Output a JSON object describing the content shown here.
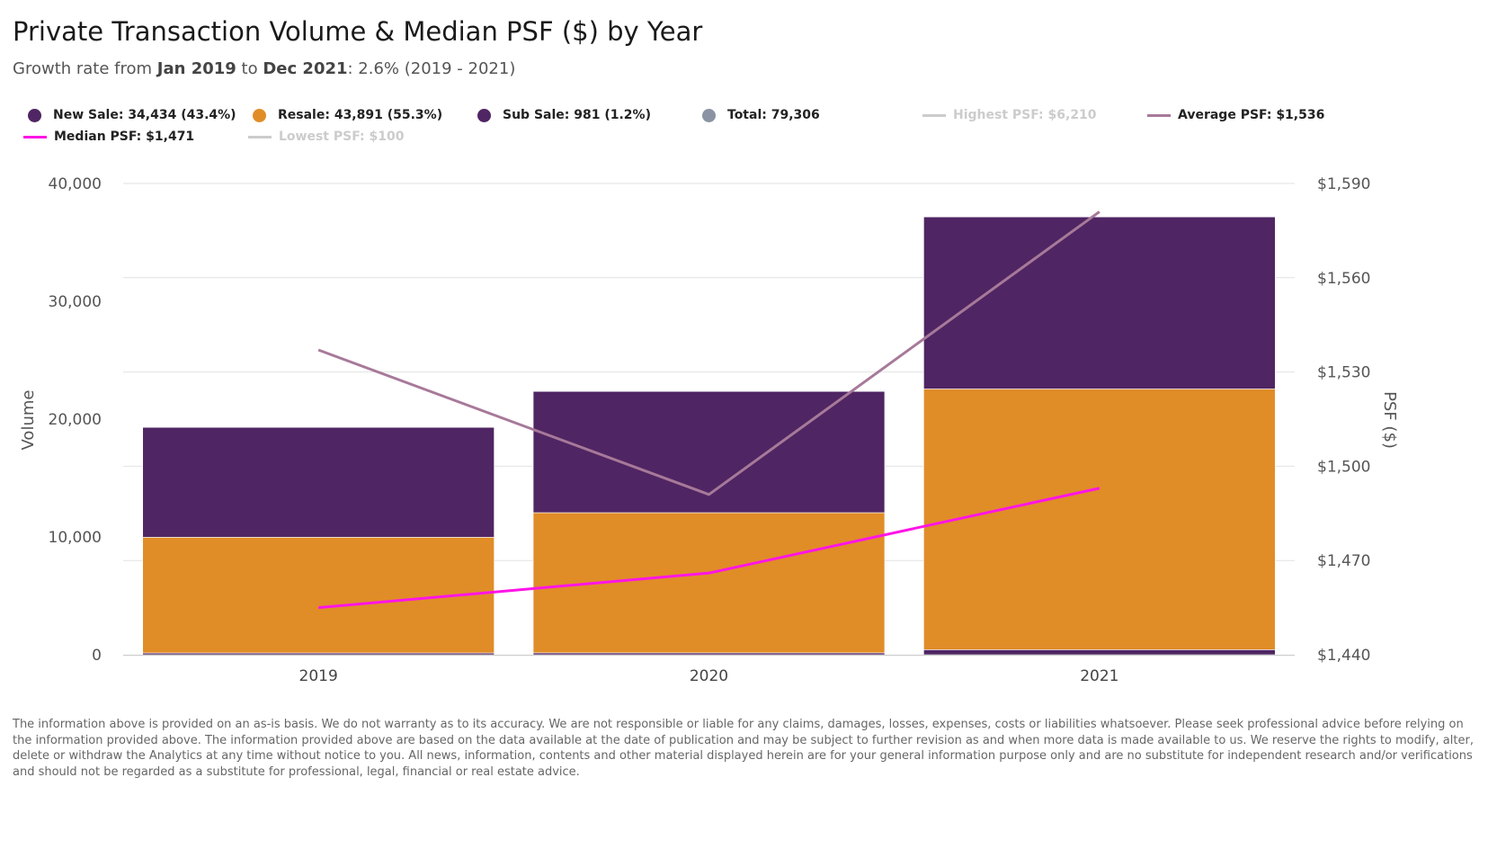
{
  "title": "Private Transaction Volume & Median PSF ($) by Year",
  "subtitle": {
    "prefix": "Growth rate from ",
    "from": "Jan 2019",
    "mid": " to ",
    "to": "Dec 2021",
    "suffix": ": 2.6% (2019 - 2021)"
  },
  "legend": [
    {
      "label": "New Sale: 34,434 (43.4%)",
      "symbol": "dot",
      "color": "#4f2563",
      "active": true
    },
    {
      "label": "Resale: 43,891 (55.3%)",
      "symbol": "dot",
      "color": "#e08d27",
      "active": true
    },
    {
      "label": "Sub Sale: 981 (1.2%)",
      "symbol": "dot",
      "color": "#4f2563",
      "active": true
    },
    {
      "label": "Total: 79,306",
      "symbol": "dot",
      "color": "#8a93a3",
      "active": true
    },
    {
      "label": "Highest PSF: $6,210",
      "symbol": "line",
      "color": "#cccccc",
      "active": false
    },
    {
      "label": "Average PSF: $1,536",
      "symbol": "line",
      "color": "#a77999",
      "active": true
    },
    {
      "label": "Median PSF: $1,471",
      "symbol": "line",
      "color": "#ff14e7",
      "active": true
    },
    {
      "label": "Lowest PSF: $100",
      "symbol": "line",
      "color": "#cccccc",
      "active": false
    }
  ],
  "chart_data": {
    "type": "bar",
    "stacked": true,
    "categories": [
      "2019",
      "2020",
      "2021"
    ],
    "ylabel": "Volume",
    "ylim": [
      0,
      40000
    ],
    "yticks": [
      "0",
      "10,000",
      "20,000",
      "30,000",
      "40,000"
    ],
    "ytick_values": [
      0,
      10000,
      20000,
      30000,
      40000
    ],
    "y2label": "PSF ($)",
    "y2lim": [
      1440,
      1590
    ],
    "y2ticks": [
      "$1,440",
      "$1,470",
      "$1,500",
      "$1,530",
      "$1,560",
      "$1,590"
    ],
    "y2tick_values": [
      1440,
      1470,
      1500,
      1530,
      1560,
      1590
    ],
    "grid": true,
    "series": [
      {
        "name": "Sub Sale",
        "kind": "bar",
        "color": "#4f2563",
        "values": [
          150,
          160,
          430
        ]
      },
      {
        "name": "Resale",
        "kind": "bar",
        "color": "#e08d27",
        "values": [
          9820,
          11900,
          22130
        ]
      },
      {
        "name": "New Sale",
        "kind": "bar",
        "color": "#4f2563",
        "values": [
          9330,
          10290,
          14600
        ]
      },
      {
        "name": "Average PSF",
        "kind": "line",
        "axis": "right",
        "color": "#a77999",
        "values": [
          1537,
          1491,
          1581
        ]
      },
      {
        "name": "Median PSF",
        "kind": "line",
        "axis": "right",
        "color": "#ff14e7",
        "values": [
          1455,
          1466,
          1493
        ]
      }
    ]
  },
  "disclaimer": "The information above is provided on an as-is basis. We do not warranty as to its accuracy. We are not responsible or liable for any claims, damages, losses, expenses, costs or liabilities whatsoever. Please seek professional advice before relying on the information provided above. The information provided above are based on the data available at the date of publication and may be subject to further revision as and when more data is made available to us. We reserve the rights to modify, alter, delete or withdraw the Analytics at any time without notice to you. All news, information, contents and other material displayed herein are for your general information purpose only and are no substitute for independent research and/or verifications and should not be regarded as a substitute for professional, legal, financial or real estate advice."
}
